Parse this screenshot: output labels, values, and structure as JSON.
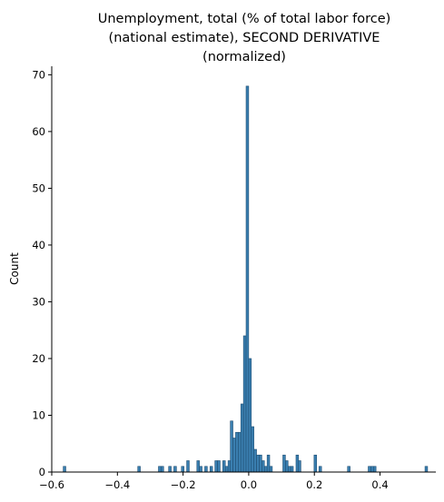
{
  "chart_data": {
    "type": "histogram",
    "title_lines": [
      "Unemployment, total (% of total labor force)",
      "(national estimate), SECOND DERIVATIVE",
      "(normalized)"
    ],
    "xlabel": "",
    "ylabel": "Count",
    "xlim": [
      -0.6,
      0.57
    ],
    "ylim": [
      0,
      71.5
    ],
    "x_ticks": [
      -0.6,
      -0.4,
      -0.2,
      0.0,
      0.2,
      0.4
    ],
    "x_tick_labels": [
      "−0.6",
      "−0.4",
      "−0.2",
      "0.0",
      "0.2",
      "0.4"
    ],
    "y_ticks": [
      0,
      10,
      20,
      30,
      40,
      50,
      60,
      70
    ],
    "y_tick_labels": [
      "0",
      "10",
      "20",
      "30",
      "40",
      "50",
      "60",
      "70"
    ],
    "bin_width": 0.00785,
    "bins": [
      {
        "x": -0.565,
        "count": 1
      },
      {
        "x": -0.338,
        "count": 1
      },
      {
        "x": -0.275,
        "count": 1
      },
      {
        "x": -0.267,
        "count": 1
      },
      {
        "x": -0.244,
        "count": 1
      },
      {
        "x": -0.228,
        "count": 1
      },
      {
        "x": -0.205,
        "count": 1
      },
      {
        "x": -0.189,
        "count": 2
      },
      {
        "x": -0.158,
        "count": 2
      },
      {
        "x": -0.15,
        "count": 1
      },
      {
        "x": -0.134,
        "count": 1
      },
      {
        "x": -0.118,
        "count": 1
      },
      {
        "x": -0.103,
        "count": 2
      },
      {
        "x": -0.095,
        "count": 2
      },
      {
        "x": -0.079,
        "count": 2
      },
      {
        "x": -0.071,
        "count": 1
      },
      {
        "x": -0.063,
        "count": 2
      },
      {
        "x": -0.056,
        "count": 9
      },
      {
        "x": -0.048,
        "count": 6
      },
      {
        "x": -0.04,
        "count": 7
      },
      {
        "x": -0.032,
        "count": 7
      },
      {
        "x": -0.024,
        "count": 12
      },
      {
        "x": -0.016,
        "count": 24
      },
      {
        "x": -0.008,
        "count": 68
      },
      {
        "x": 0.0,
        "count": 20
      },
      {
        "x": 0.008,
        "count": 8
      },
      {
        "x": 0.016,
        "count": 4
      },
      {
        "x": 0.024,
        "count": 3
      },
      {
        "x": 0.032,
        "count": 3
      },
      {
        "x": 0.04,
        "count": 2
      },
      {
        "x": 0.048,
        "count": 1
      },
      {
        "x": 0.056,
        "count": 3
      },
      {
        "x": 0.064,
        "count": 1
      },
      {
        "x": 0.104,
        "count": 3
      },
      {
        "x": 0.112,
        "count": 2
      },
      {
        "x": 0.12,
        "count": 1
      },
      {
        "x": 0.128,
        "count": 1
      },
      {
        "x": 0.144,
        "count": 3
      },
      {
        "x": 0.151,
        "count": 2
      },
      {
        "x": 0.199,
        "count": 3
      },
      {
        "x": 0.214,
        "count": 1
      },
      {
        "x": 0.301,
        "count": 1
      },
      {
        "x": 0.364,
        "count": 1
      },
      {
        "x": 0.372,
        "count": 1
      },
      {
        "x": 0.38,
        "count": 1
      },
      {
        "x": 0.537,
        "count": 1
      }
    ],
    "colors": {
      "bar_fill": "#3a7fb0",
      "bar_edge": "#1f4e73"
    },
    "grid": false,
    "legend": "none"
  }
}
